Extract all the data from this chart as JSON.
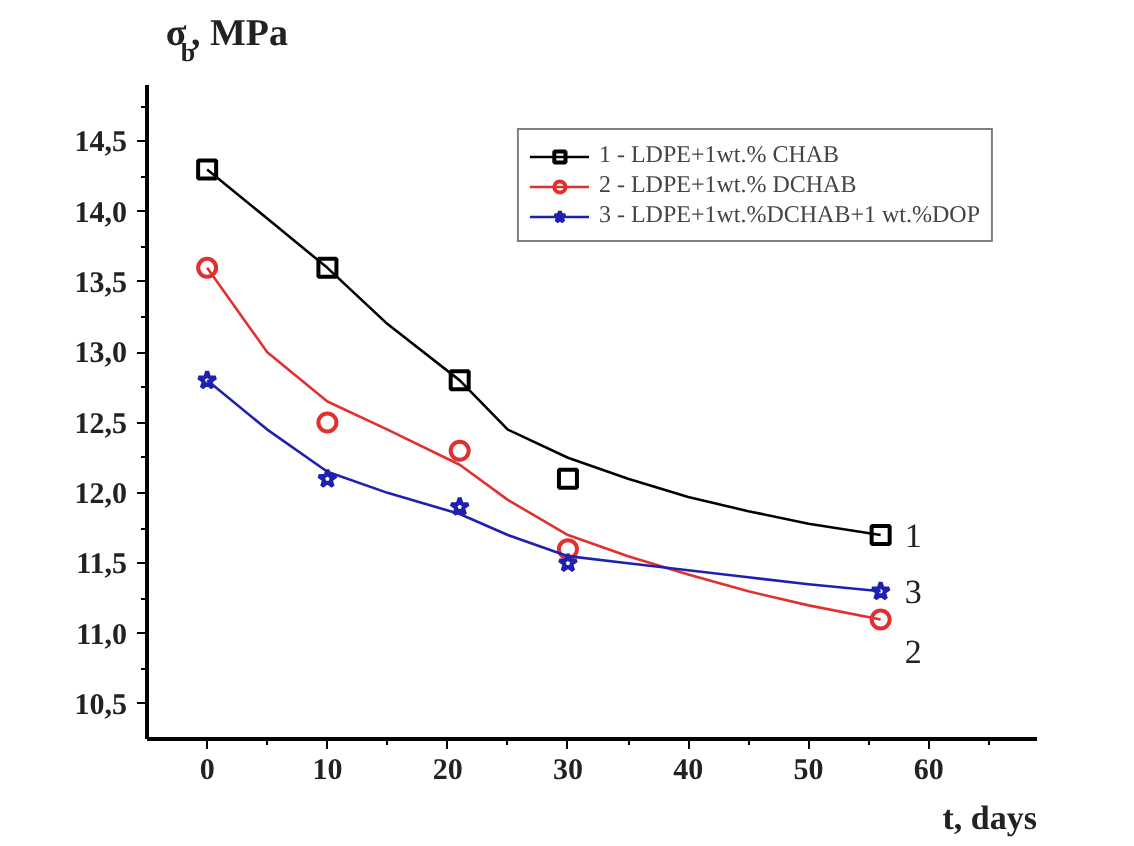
{
  "chart_data": {
    "type": "scatter",
    "ylabel": "σ$_{b}$,  MPa",
    "xlabel": "t, days",
    "xlim": [
      -5,
      69
    ],
    "ylim": [
      10.25,
      14.9
    ],
    "xticks": [
      0,
      10,
      20,
      30,
      40,
      50,
      60,
      {
        "value": 5,
        "label": null
      },
      {
        "value": 15,
        "label": null
      },
      {
        "value": 25,
        "label": null
      },
      {
        "value": 35,
        "label": null
      },
      {
        "value": 45,
        "label": null
      },
      {
        "value": 55,
        "label": null
      },
      {
        "value": 65,
        "label": null
      }
    ],
    "yticks": [
      {
        "value": 10.5,
        "label": "10,5"
      },
      {
        "value": 11.0,
        "label": "11,0"
      },
      {
        "value": 11.5,
        "label": "11,5"
      },
      {
        "value": 12.0,
        "label": "12,0"
      },
      {
        "value": 12.5,
        "label": "12,5"
      },
      {
        "value": 13.0,
        "label": "13,0"
      },
      {
        "value": 13.5,
        "label": "13,5"
      },
      {
        "value": 14.0,
        "label": "14,0"
      },
      {
        "value": 14.5,
        "label": "14,5"
      },
      {
        "value": 10.75,
        "label": null
      },
      {
        "value": 11.25,
        "label": null
      },
      {
        "value": 11.75,
        "label": null
      },
      {
        "value": 12.25,
        "label": null
      },
      {
        "value": 12.75,
        "label": null
      },
      {
        "value": 13.25,
        "label": null
      },
      {
        "value": 13.75,
        "label": null
      },
      {
        "value": 14.25,
        "label": null
      },
      {
        "value": 14.75,
        "label": null
      }
    ],
    "grid": false,
    "legend": "top right",
    "series": [
      {
        "name": "1 - LDPE+1wt.% CHAB",
        "color": "#000000",
        "marker": "square",
        "x": [
          0,
          10,
          21,
          30,
          56
        ],
        "values": [
          14.3,
          13.6,
          12.8,
          12.1,
          11.7
        ]
      },
      {
        "name": "2 - LDPE+1wt.% DCHAB",
        "color": "#e03030",
        "marker": "circle",
        "x": [
          0,
          10,
          21,
          30,
          56
        ],
        "values": [
          13.6,
          12.5,
          12.3,
          11.6,
          11.1
        ]
      },
      {
        "name": "3 - LDPE+1wt.%DCHAB+1 wt.%DOP",
        "color": "#2020b0",
        "marker": "star",
        "x": [
          0,
          10,
          21,
          30,
          56
        ],
        "values": [
          12.8,
          12.1,
          11.9,
          11.5,
          11.3
        ]
      },
      {
        "type": "line",
        "color": "#000000",
        "x": [
          0,
          5,
          10,
          15,
          21,
          25,
          30,
          35,
          40,
          45,
          50,
          56
        ],
        "values": [
          14.3,
          13.95,
          13.6,
          13.2,
          12.8,
          12.45,
          12.25,
          12.1,
          11.97,
          11.87,
          11.78,
          11.7
        ]
      },
      {
        "type": "line",
        "color": "#e03030",
        "x": [
          0,
          5,
          10,
          15,
          21,
          25,
          30,
          35,
          40,
          45,
          50,
          56
        ],
        "values": [
          13.6,
          13.0,
          12.65,
          12.45,
          12.2,
          11.95,
          11.7,
          11.55,
          11.42,
          11.3,
          11.2,
          11.1
        ]
      },
      {
        "type": "line",
        "color": "#2020b0",
        "x": [
          0,
          5,
          10,
          15,
          21,
          25,
          30,
          35,
          40,
          45,
          50,
          56
        ],
        "values": [
          12.8,
          12.45,
          12.15,
          12.0,
          11.85,
          11.7,
          11.55,
          11.5,
          11.45,
          11.4,
          11.35,
          11.3
        ]
      }
    ],
    "annotations": [
      "1",
      "2",
      "3"
    ]
  }
}
